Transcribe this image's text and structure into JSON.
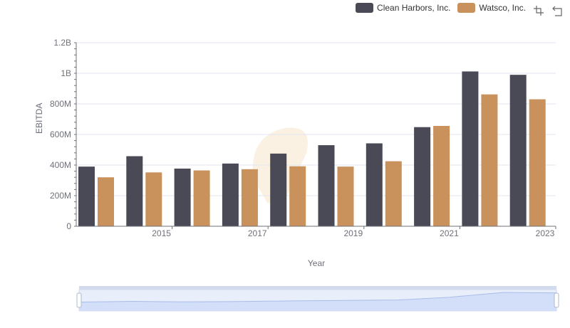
{
  "legend": {
    "items": [
      {
        "label": "Clean Harbors, Inc.",
        "color": "#4a4a56"
      },
      {
        "label": "Watsco, Inc.",
        "color": "#c9915c"
      }
    ]
  },
  "toolbox": {
    "icons": [
      "zoom-select-icon",
      "zoom-reset-icon"
    ]
  },
  "chart_data": {
    "type": "bar",
    "x_categories": [
      "2014",
      "2015",
      "2016",
      "2017",
      "2018",
      "2019",
      "2020",
      "2021",
      "2022",
      "2023"
    ],
    "x_tick_labels": [
      "2015",
      "2017",
      "2019",
      "2021",
      "2023"
    ],
    "y_tick_labels": [
      "0",
      "200M",
      "400M",
      "600M",
      "800M",
      "1B",
      "1.2B"
    ],
    "xlabel": "Year",
    "ylabel": "EBITDA",
    "ylim": [
      0,
      1200000000
    ],
    "grid": true,
    "legend_position": "top-right",
    "series": [
      {
        "name": "Clean Harbors, Inc.",
        "color": "#4a4a56",
        "values": [
          390000000,
          458000000,
          377000000,
          410000000,
          475000000,
          530000000,
          542000000,
          648000000,
          1012000000,
          990000000
        ]
      },
      {
        "name": "Watsco, Inc.",
        "color": "#c9915c",
        "values": [
          320000000,
          352000000,
          365000000,
          373000000,
          392000000,
          390000000,
          425000000,
          656000000,
          862000000,
          830000000
        ]
      }
    ],
    "data_zoom": {
      "start_percent": 0,
      "end_percent": 100
    }
  }
}
